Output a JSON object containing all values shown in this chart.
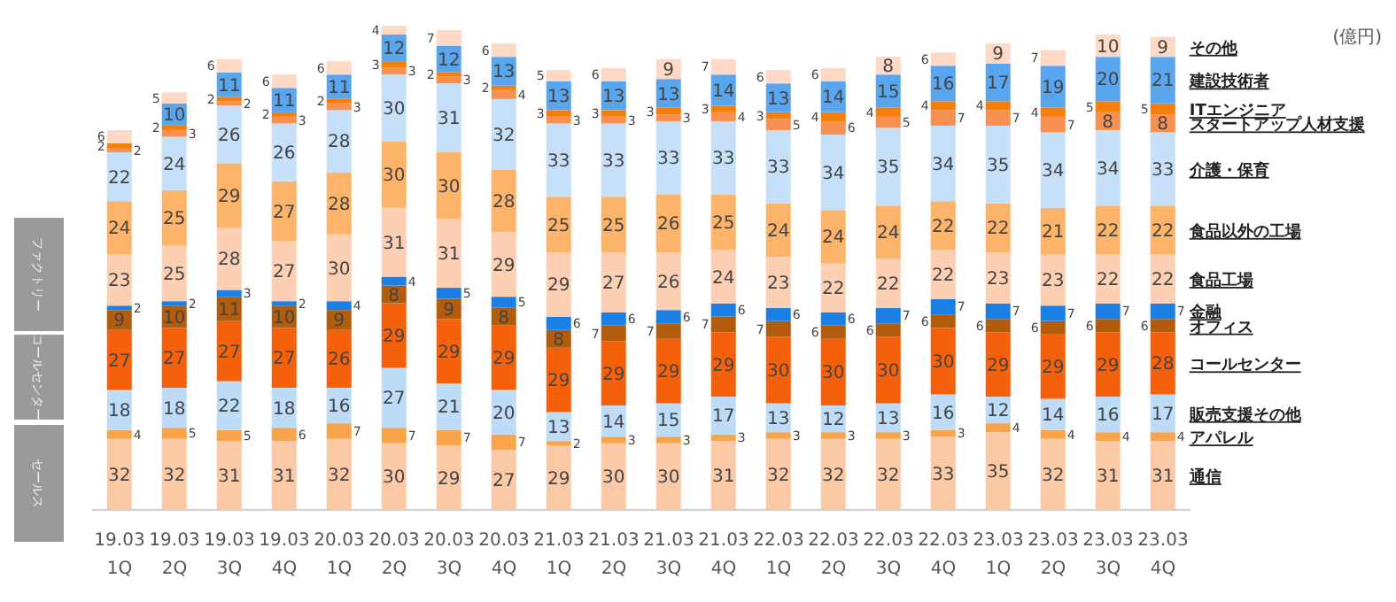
{
  "chart_data": {
    "type": "bar",
    "stacked": true,
    "data_labels": true,
    "legend": false,
    "grid": false,
    "tick_labels": "x",
    "annotations": [
      "(億円)",
      "ファクトリー",
      "コールセンター",
      "セールス"
    ],
    "categories": [
      "19.03 1Q",
      "19.03 2Q",
      "19.03 3Q",
      "19.03 4Q",
      "20.03 1Q",
      "20.03 2Q",
      "20.03 3Q",
      "20.03 4Q",
      "21.03 1Q",
      "21.03 2Q",
      "21.03 3Q",
      "21.03 4Q",
      "22.03 1Q",
      "22.03 2Q",
      "22.03 3Q",
      "22.03 4Q",
      "23.03 1Q",
      "23.03 2Q",
      "23.03 3Q",
      "23.03 4Q"
    ],
    "series": [
      {
        "name": "通信",
        "color": "#fcc9a6",
        "values": [
          32,
          32,
          31,
          31,
          32,
          30,
          29,
          27,
          29,
          30,
          30,
          31,
          32,
          32,
          32,
          33,
          35,
          32,
          31,
          31
        ]
      },
      {
        "name": "アパレル",
        "color": "#f9a34a",
        "values": [
          4,
          5,
          5,
          6,
          7,
          7,
          7,
          7,
          2,
          3,
          3,
          3,
          3,
          3,
          3,
          3,
          4,
          4,
          4,
          4
        ]
      },
      {
        "name": "販売支援その他",
        "color": "#bcdcf7",
        "values": [
          18,
          18,
          22,
          18,
          16,
          27,
          21,
          20,
          13,
          14,
          15,
          17,
          13,
          12,
          13,
          16,
          12,
          14,
          16,
          17
        ]
      },
      {
        "name": "コールセンター",
        "color": "#f5610a",
        "values": [
          27,
          27,
          27,
          27,
          26,
          29,
          29,
          29,
          29,
          29,
          29,
          29,
          30,
          30,
          30,
          30,
          29,
          29,
          29,
          28
        ]
      },
      {
        "name": "オフィス",
        "color": "#b35c0c",
        "values": [
          9,
          10,
          11,
          10,
          9,
          8,
          9,
          8,
          8,
          7,
          7,
          7,
          7,
          6,
          6,
          6,
          6,
          6,
          6,
          6
        ]
      },
      {
        "name": "金融",
        "color": "#1a80e6",
        "values": [
          2,
          2,
          3,
          2,
          4,
          4,
          5,
          5,
          6,
          6,
          6,
          6,
          6,
          6,
          7,
          7,
          7,
          7,
          7,
          7
        ]
      },
      {
        "name": "食品工場",
        "color": "#fdd0b4",
        "values": [
          23,
          25,
          28,
          27,
          30,
          31,
          31,
          29,
          29,
          27,
          26,
          24,
          23,
          22,
          22,
          22,
          23,
          23,
          22,
          22
        ]
      },
      {
        "name": "食品以外の工場",
        "color": "#fbb469",
        "values": [
          24,
          25,
          29,
          27,
          28,
          30,
          30,
          28,
          25,
          25,
          26,
          25,
          24,
          24,
          24,
          22,
          22,
          21,
          22,
          22
        ]
      },
      {
        "name": "介護・保育",
        "color": "#c5e0f8",
        "values": [
          22,
          24,
          26,
          26,
          28,
          30,
          31,
          32,
          33,
          33,
          33,
          33,
          33,
          34,
          35,
          34,
          35,
          34,
          34,
          33
        ]
      },
      {
        "name": "スタートアップ人材支援",
        "color": "#f79050",
        "values": [
          2,
          3,
          2,
          3,
          3,
          3,
          3,
          4,
          3,
          3,
          3,
          4,
          5,
          6,
          5,
          7,
          7,
          7,
          8,
          8
        ]
      },
      {
        "name": "ITエンジニア",
        "color": "#f57f0a",
        "values": [
          2,
          2,
          2,
          2,
          2,
          3,
          2,
          2,
          3,
          3,
          3,
          3,
          3,
          4,
          4,
          4,
          4,
          4,
          5,
          5
        ]
      },
      {
        "name": "建設技術者",
        "color": "#59a6ef",
        "values": [
          null,
          10,
          11,
          11,
          11,
          12,
          12,
          13,
          13,
          13,
          13,
          14,
          13,
          14,
          15,
          16,
          17,
          19,
          20,
          21
        ]
      },
      {
        "name": "その他",
        "color": "#fdd9c6",
        "values": [
          6,
          5,
          6,
          6,
          6,
          4,
          7,
          6,
          5,
          6,
          9,
          7,
          6,
          6,
          8,
          6,
          9,
          7,
          10,
          9
        ]
      }
    ]
  }
}
